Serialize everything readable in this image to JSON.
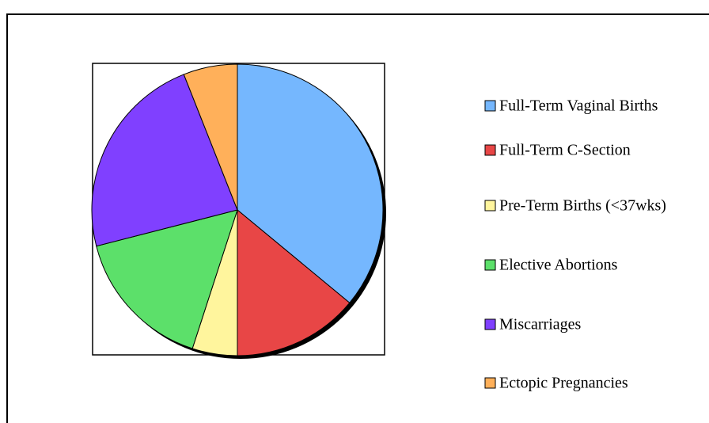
{
  "chart_data": {
    "type": "pie",
    "categories": [
      "Full-Term Vaginal Births",
      "Full-Term C-Section",
      "Pre-Term Births (<37wks)",
      "Elective Abortions",
      "Miscarriages",
      "Ectopic Pregnancies"
    ],
    "values": [
      36,
      14,
      5,
      16,
      23,
      6
    ],
    "colors": [
      "#75b7fe",
      "#e84646",
      "#fff59d",
      "#5ce06a",
      "#8040ff",
      "#ffb05a"
    ],
    "legend": "right"
  }
}
